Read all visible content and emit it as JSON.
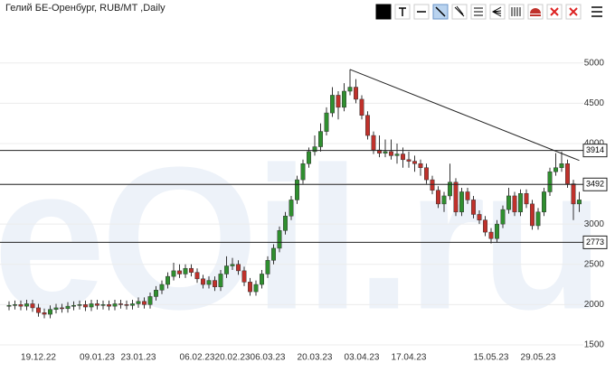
{
  "chart_data": {
    "type": "candlestick",
    "title": "Гелий БЕ-Оренбург, RUB/MT ,Daily",
    "watermark": "eOil.ru",
    "categories": [
      null,
      null,
      null,
      null,
      null,
      "19.12.22",
      null,
      null,
      null,
      null,
      null,
      null,
      null,
      null,
      null,
      "09.01.23",
      null,
      null,
      null,
      null,
      null,
      null,
      "23.01.23",
      null,
      null,
      null,
      null,
      null,
      null,
      null,
      null,
      null,
      "06.02.23",
      null,
      null,
      null,
      null,
      null,
      "20.02.23",
      null,
      null,
      null,
      null,
      null,
      "06.03.23",
      null,
      null,
      null,
      null,
      null,
      null,
      null,
      "20.03.23",
      null,
      null,
      null,
      null,
      null,
      null,
      null,
      "03.04.23",
      null,
      null,
      null,
      null,
      null,
      null,
      null,
      "17.04.23",
      null,
      null,
      null,
      null,
      null,
      null,
      null,
      null,
      null,
      null,
      null,
      null,
      null,
      "15.05.23",
      null,
      null,
      null,
      null,
      null,
      null,
      null,
      "29.05.23",
      null,
      null,
      null,
      null,
      null,
      null,
      null
    ],
    "open": [
      1980,
      1990,
      2000,
      1980,
      2010,
      1960,
      1900,
      1880,
      1940,
      1960,
      1950,
      1980,
      1990,
      2000,
      1970,
      2010,
      1990,
      2000,
      1980,
      2010,
      2000,
      1990,
      2010,
      2040,
      2000,
      2100,
      2180,
      2250,
      2350,
      2420,
      2380,
      2450,
      2400,
      2320,
      2250,
      2300,
      2220,
      2380,
      2480,
      2500,
      2420,
      2280,
      2160,
      2250,
      2380,
      2550,
      2700,
      2920,
      3100,
      3300,
      3550,
      3750,
      3900,
      3960,
      4150,
      4380,
      4600,
      4450,
      4650,
      4700,
      4550,
      4350,
      4100,
      3920,
      3880,
      3900,
      3850,
      3870,
      3800,
      3780,
      3750,
      3700,
      3550,
      3420,
      3250,
      3350,
      3520,
      3150,
      3400,
      3300,
      3120,
      3050,
      2900,
      2820,
      3000,
      3180,
      3350,
      3150,
      3380,
      3250,
      2980,
      3150,
      3400,
      3650,
      3700,
      3750,
      3500,
      3250
    ],
    "high": [
      2040,
      2050,
      2050,
      2060,
      2060,
      2010,
      1950,
      1990,
      2010,
      2010,
      2030,
      2040,
      2050,
      2050,
      2060,
      2060,
      2050,
      2050,
      2060,
      2060,
      2050,
      2060,
      2090,
      2090,
      2150,
      2230,
      2300,
      2400,
      2520,
      2500,
      2500,
      2500,
      2450,
      2370,
      2350,
      2350,
      2430,
      2600,
      2580,
      2550,
      2470,
      2330,
      2300,
      2430,
      2600,
      2750,
      2970,
      3150,
      3350,
      3600,
      3800,
      3950,
      4100,
      4250,
      4450,
      4700,
      4650,
      4750,
      4920,
      4800,
      4600,
      4400,
      4150,
      4100,
      4050,
      4050,
      4000,
      3950,
      3900,
      3850,
      3800,
      3750,
      3600,
      3470,
      3400,
      3750,
      3570,
      3450,
      3450,
      3350,
      3170,
      3100,
      2950,
      3050,
      3230,
      3450,
      3400,
      3430,
      3430,
      3300,
      3200,
      3450,
      3700,
      3880,
      3900,
      3800,
      3550,
      3400
    ],
    "low": [
      1930,
      1940,
      1930,
      1930,
      1910,
      1850,
      1830,
      1830,
      1890,
      1900,
      1900,
      1930,
      1940,
      1920,
      1920,
      1940,
      1940,
      1930,
      1930,
      1950,
      1940,
      1940,
      1960,
      1950,
      1950,
      2050,
      2130,
      2200,
      2300,
      2330,
      2330,
      2350,
      2270,
      2200,
      2200,
      2170,
      2170,
      2330,
      2430,
      2370,
      2230,
      2110,
      2110,
      2200,
      2330,
      2500,
      2650,
      2870,
      3050,
      3250,
      3500,
      3700,
      3850,
      3900,
      4100,
      4330,
      4300,
      4400,
      4600,
      4500,
      4300,
      4050,
      3870,
      3830,
      3830,
      3800,
      3750,
      3700,
      3700,
      3650,
      3600,
      3500,
      3370,
      3200,
      3150,
      3300,
      3100,
      3100,
      3250,
      3070,
      3000,
      2850,
      2760,
      2770,
      2950,
      3130,
      3100,
      3100,
      3200,
      2930,
      2930,
      3100,
      3350,
      3600,
      3650,
      3450,
      3050,
      3150
    ],
    "close": [
      1990,
      2000,
      1980,
      2010,
      1960,
      1900,
      1880,
      1940,
      1960,
      1950,
      1980,
      1990,
      2000,
      1970,
      2010,
      1990,
      2000,
      1980,
      2010,
      2000,
      1990,
      2010,
      2040,
      2000,
      2100,
      2180,
      2250,
      2350,
      2420,
      2380,
      2450,
      2400,
      2320,
      2250,
      2300,
      2220,
      2380,
      2480,
      2500,
      2420,
      2280,
      2160,
      2250,
      2380,
      2550,
      2700,
      2920,
      3100,
      3300,
      3550,
      3750,
      3900,
      3960,
      4150,
      4380,
      4600,
      4450,
      4650,
      4700,
      4550,
      4350,
      4100,
      3920,
      3880,
      3900,
      3850,
      3870,
      3800,
      3780,
      3750,
      3700,
      3550,
      3420,
      3250,
      3350,
      3520,
      3150,
      3400,
      3300,
      3120,
      3050,
      2900,
      2820,
      3000,
      3180,
      3350,
      3150,
      3380,
      3250,
      2980,
      3150,
      3400,
      3650,
      3700,
      3750,
      3500,
      3250,
      3300
    ],
    "up_color": "#2f8f2f",
    "down_color": "#c0312b",
    "levels": [
      3914,
      3492,
      2773
    ],
    "trendline": {
      "x": [
        58,
        97
      ],
      "y": [
        4920,
        3790
      ]
    },
    "ylim": [
      1320,
      5390
    ],
    "yticks": [
      1500,
      2000,
      2500,
      3000,
      3500,
      4000,
      4500,
      5000
    ],
    "grid": true
  }
}
